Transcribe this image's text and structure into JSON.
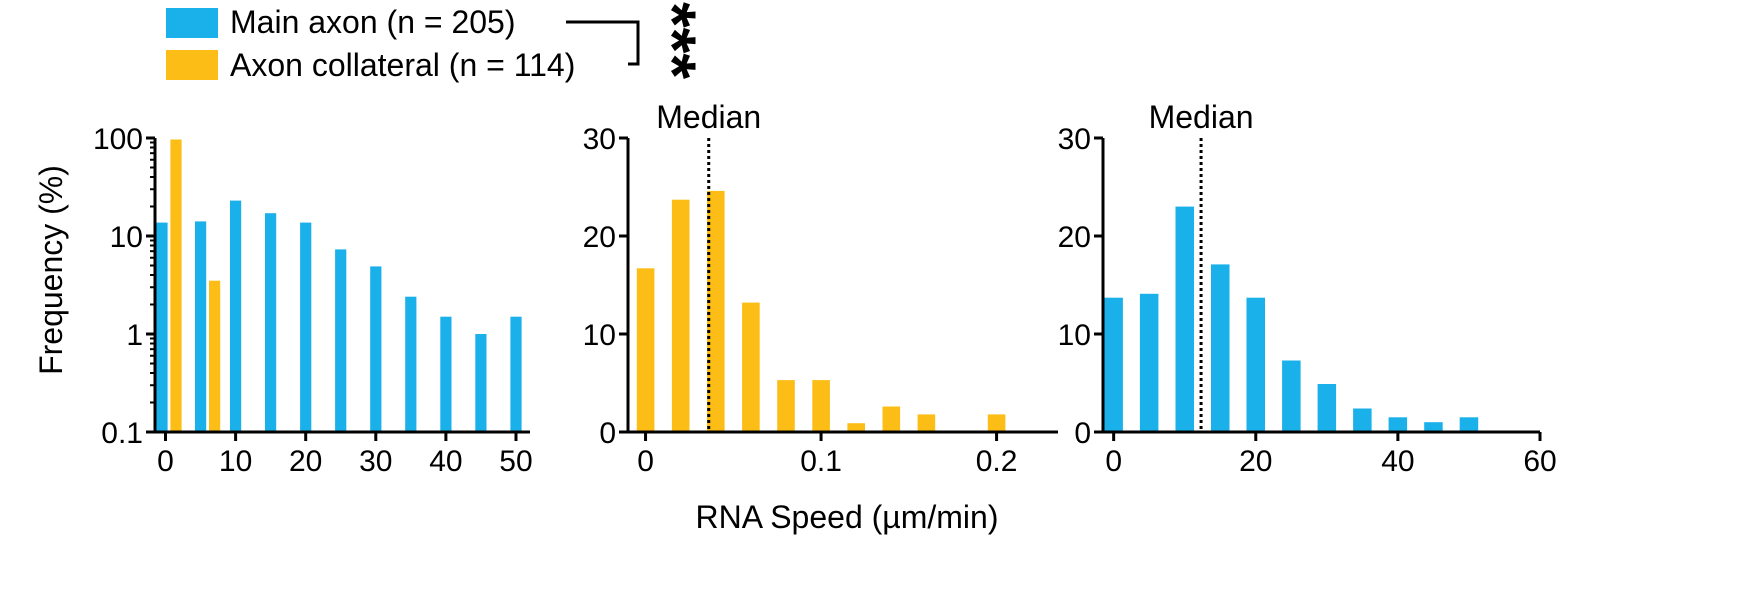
{
  "colors": {
    "main_axon": "#1ab0ea",
    "axon_collateral": "#fbbd16",
    "axis": "#000000"
  },
  "legend": {
    "items": [
      {
        "label": "Main axon (n = 205)",
        "color_key": "main_axon"
      },
      {
        "label": "Axon collateral (n = 114)",
        "color_key": "axon_collateral"
      }
    ],
    "significance": "***"
  },
  "y_axis_title": "Frequency (%)",
  "x_axis_title": "RNA Speed (µm/min)",
  "chart_data": [
    {
      "type": "bar",
      "yscale": "log",
      "ylim": [
        0.1,
        100
      ],
      "xlim": [
        -1.5,
        52
      ],
      "yticks": [
        0.1,
        1,
        10,
        100
      ],
      "ytick_labels": [
        "0.1",
        "1",
        "10",
        "100"
      ],
      "xticks": [
        0,
        10,
        20,
        30,
        40,
        50
      ],
      "xtick_labels": [
        "0",
        "10",
        "20",
        "30",
        "40",
        "50"
      ],
      "bar_width": 1.6,
      "series": [
        {
          "name": "Main axon",
          "color_key": "main_axon",
          "x": [
            -0.5,
            5,
            10,
            15,
            20,
            25,
            30,
            35,
            40,
            45,
            50
          ],
          "values": [
            13.7,
            14.1,
            23.0,
            17.1,
            13.7,
            7.3,
            4.9,
            2.4,
            1.5,
            1.0,
            1.5
          ]
        },
        {
          "name": "Axon collateral",
          "color_key": "axon_collateral",
          "x": [
            1.5,
            7
          ],
          "values": [
            96.5,
            3.5
          ]
        }
      ]
    },
    {
      "type": "bar",
      "ylim": [
        0,
        30
      ],
      "xlim": [
        -0.01,
        0.235
      ],
      "yticks": [
        0,
        10,
        20,
        30
      ],
      "ytick_labels": [
        "0",
        "10",
        "20",
        "30"
      ],
      "xticks": [
        0,
        0.1,
        0.2
      ],
      "xtick_labels": [
        "0",
        "0.1",
        "0.2"
      ],
      "bar_width": 0.01,
      "median": 0.036,
      "median_label": "Median",
      "series": [
        {
          "name": "Axon collateral",
          "color_key": "axon_collateral",
          "x": [
            0,
            0.02,
            0.04,
            0.06,
            0.08,
            0.1,
            0.12,
            0.14,
            0.16,
            0.2
          ],
          "values": [
            16.7,
            23.7,
            24.6,
            13.2,
            5.3,
            5.3,
            0.9,
            2.6,
            1.8,
            1.8
          ]
        }
      ]
    },
    {
      "type": "bar",
      "ylim": [
        0,
        30
      ],
      "xlim": [
        -1.5,
        60
      ],
      "yticks": [
        0,
        10,
        20,
        30
      ],
      "ytick_labels": [
        "0",
        "10",
        "20",
        "30"
      ],
      "xticks": [
        0,
        20,
        40,
        60
      ],
      "xtick_labels": [
        "0",
        "20",
        "40",
        "60"
      ],
      "bar_width": 2.6,
      "median": 12.3,
      "median_label": "Median",
      "series": [
        {
          "name": "Main axon",
          "color_key": "main_axon",
          "x": [
            0,
            5,
            10,
            15,
            20,
            25,
            30,
            35,
            40,
            45,
            50
          ],
          "values": [
            13.7,
            14.1,
            23.0,
            17.1,
            13.7,
            7.3,
            4.9,
            2.4,
            1.5,
            1.0,
            1.5
          ]
        }
      ]
    }
  ]
}
